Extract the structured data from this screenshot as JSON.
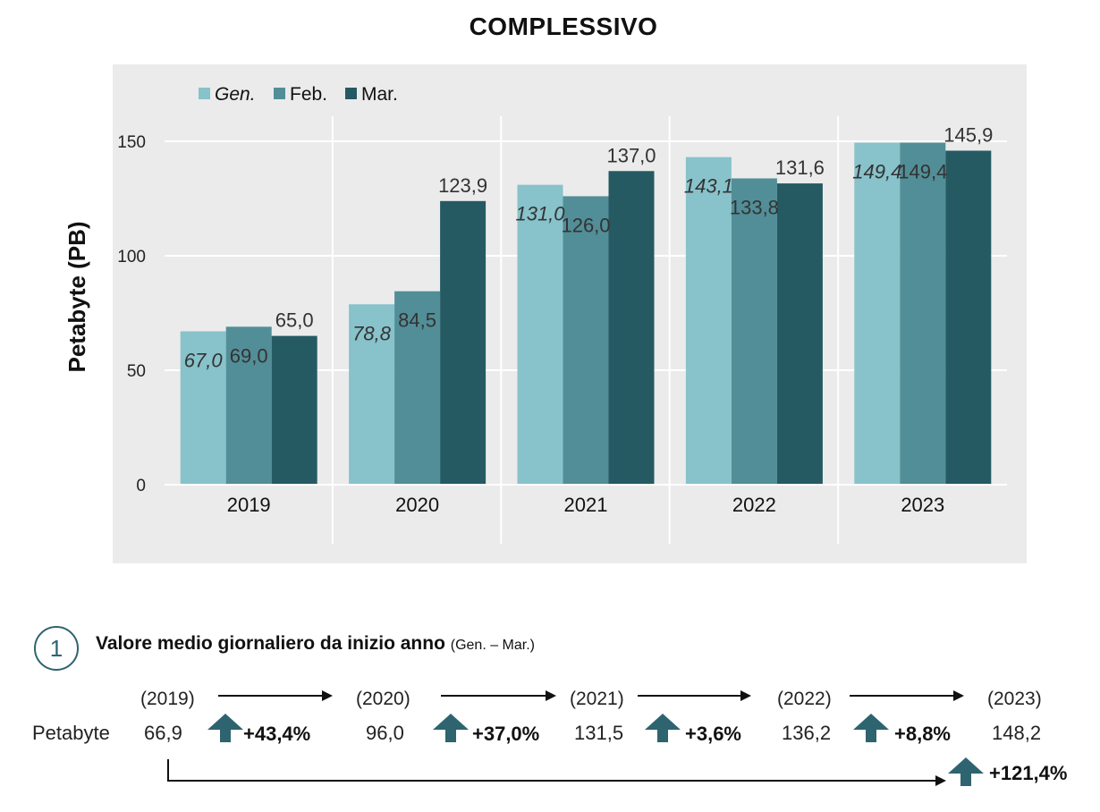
{
  "chart_data": {
    "type": "bar",
    "title": "COMPLESSIVO",
    "ylabel": "Petabyte (PB)",
    "xlabel": "",
    "ylim": [
      0,
      160
    ],
    "yticks": [
      0,
      50,
      100,
      150
    ],
    "categories": [
      "2019",
      "2020",
      "2021",
      "2022",
      "2023"
    ],
    "series": [
      {
        "name": "Gen.",
        "color": "#88c2cb",
        "values": [
          67.0,
          78.8,
          131.0,
          143.1,
          149.4
        ],
        "labels": [
          "67,0",
          "78,8",
          "131,0",
          "143,1",
          "149,4"
        ]
      },
      {
        "name": "Feb.",
        "color": "#528e97",
        "values": [
          69.0,
          84.5,
          126.0,
          133.8,
          149.4
        ],
        "labels": [
          "69,0",
          "84,5",
          "126,0",
          "133,8",
          "149,4"
        ]
      },
      {
        "name": "Mar.",
        "color": "#255a63",
        "values": [
          65.0,
          123.9,
          137.0,
          131.6,
          145.9
        ],
        "labels": [
          "65,0",
          "123,9",
          "137,0",
          "131,6",
          "145,9"
        ]
      }
    ],
    "legend_position": "top-left",
    "grid": true,
    "background": "#ebebeb"
  },
  "summary": {
    "number": "1",
    "title": "Valore medio giornaliero da inizio anno",
    "subtitle": "(Gen. – Mar.)",
    "row_label": "Petabyte",
    "years": [
      "(2019)",
      "(2020)",
      "(2021)",
      "(2022)",
      "(2023)"
    ],
    "values": [
      "66,9",
      "96,0",
      "131,5",
      "136,2",
      "148,2"
    ],
    "changes": [
      "+43,4%",
      "+37,0%",
      "+3,6%",
      "+8,8%"
    ],
    "total_change": "+121,4%",
    "arrow_color": "#2e6470"
  }
}
